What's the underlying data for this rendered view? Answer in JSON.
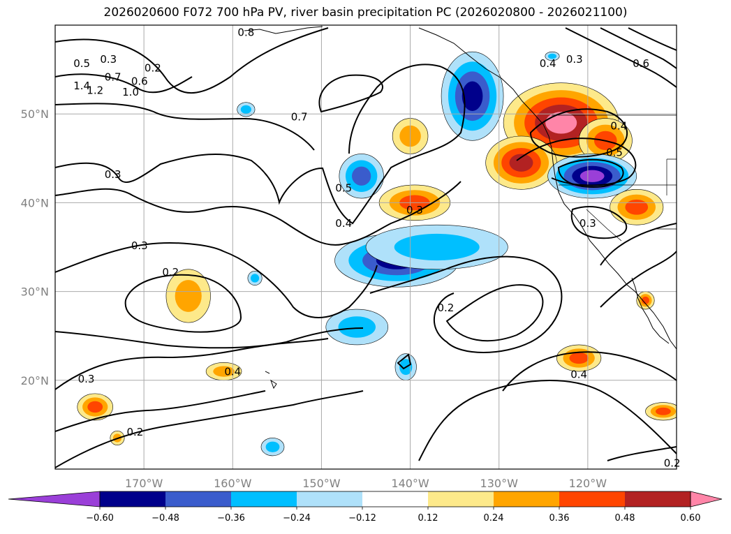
{
  "title": "2026020600 F072 700 hPa PV, river basin precipitation PC (2026020800 - 2026021100)",
  "map": {
    "lon_range": [
      -180,
      -110
    ],
    "lat_range": [
      10,
      60
    ],
    "lon_ticks": [
      {
        "value": -170,
        "label": "170°W"
      },
      {
        "value": -160,
        "label": "160°W"
      },
      {
        "value": -150,
        "label": "150°W"
      },
      {
        "value": -140,
        "label": "140°W"
      },
      {
        "value": -130,
        "label": "130°W"
      },
      {
        "value": -120,
        "label": "120°W"
      }
    ],
    "lat_ticks": [
      {
        "value": 50,
        "label": "50°N"
      },
      {
        "value": 40,
        "label": "40°N"
      },
      {
        "value": 30,
        "label": "30°N"
      },
      {
        "value": 20,
        "label": "20°N"
      }
    ],
    "gridlines": true
  },
  "colorbar": {
    "extend": "both",
    "colors": [
      "#9a3fd8",
      "#00008b",
      "#3a5ccc",
      "#00bfff",
      "#afe1fa",
      "#ffffff",
      "#fde98a",
      "#ffa500",
      "#ff4500",
      "#b22222",
      "#ff85a8"
    ],
    "tick_labels": [
      "−0.60",
      "−0.48",
      "−0.36",
      "−0.24",
      "−0.12",
      "0.12",
      "0.24",
      "0.36",
      "0.48",
      "0.60"
    ]
  },
  "contour_labels": [
    {
      "text": "0.3",
      "lon": -174,
      "lat": 56
    },
    {
      "text": "0.2",
      "lon": -169,
      "lat": 55
    },
    {
      "text": "0.5",
      "lon": -177,
      "lat": 55.5
    },
    {
      "text": "0.7",
      "lon": -173.5,
      "lat": 54
    },
    {
      "text": "0.6",
      "lon": -170.5,
      "lat": 53.5
    },
    {
      "text": "1.4",
      "lon": -177,
      "lat": 53
    },
    {
      "text": "1.2",
      "lon": -175.5,
      "lat": 52.5
    },
    {
      "text": "1.0",
      "lon": -171.5,
      "lat": 52.3
    },
    {
      "text": "0.3",
      "lon": -173.5,
      "lat": 43
    },
    {
      "text": "0.8",
      "lon": -158.5,
      "lat": 59
    },
    {
      "text": "0.7",
      "lon": -152.5,
      "lat": 49.5
    },
    {
      "text": "0.5",
      "lon": -147.5,
      "lat": 41.5
    },
    {
      "text": "0.4",
      "lon": -147.5,
      "lat": 37.5
    },
    {
      "text": "0.3",
      "lon": -139.5,
      "lat": 39
    },
    {
      "text": "0.3",
      "lon": -170.5,
      "lat": 35
    },
    {
      "text": "0.2",
      "lon": -167,
      "lat": 32
    },
    {
      "text": "0.2",
      "lon": -136,
      "lat": 28
    },
    {
      "text": "0.4",
      "lon": -160,
      "lat": 20.8
    },
    {
      "text": "0.3",
      "lon": -176.5,
      "lat": 20
    },
    {
      "text": "0.2",
      "lon": -171,
      "lat": 14
    },
    {
      "text": "0.4",
      "lon": -121,
      "lat": 20.5
    },
    {
      "text": "0.3",
      "lon": -121.5,
      "lat": 56
    },
    {
      "text": "0.4",
      "lon": -124.5,
      "lat": 55.5
    },
    {
      "text": "0.6",
      "lon": -114,
      "lat": 55.5
    },
    {
      "text": "0.4",
      "lon": -116.5,
      "lat": 48.5
    },
    {
      "text": "0.5",
      "lon": -117,
      "lat": 45.5
    },
    {
      "text": "0.3",
      "lon": -120,
      "lat": 37.5
    },
    {
      "text": "0.2",
      "lon": -110.5,
      "lat": 10.5
    }
  ],
  "precip_patches": [
    {
      "lon": -123,
      "lat": 49,
      "value": 0.7,
      "rx": 6.5,
      "ry": 4.5
    },
    {
      "lon": -127.5,
      "lat": 44.5,
      "value": 0.5,
      "rx": 4,
      "ry": 3
    },
    {
      "lon": -118,
      "lat": 47,
      "value": 0.4,
      "rx": 3,
      "ry": 2.5
    },
    {
      "lon": -119.5,
      "lat": 43,
      "value": -0.6,
      "rx": 5,
      "ry": 2.5
    },
    {
      "lon": -133,
      "lat": 52,
      "value": -0.55,
      "rx": 3.5,
      "ry": 5
    },
    {
      "lon": -145.5,
      "lat": 43,
      "value": -0.4,
      "rx": 2.5,
      "ry": 2.5
    },
    {
      "lon": -141.5,
      "lat": 33.5,
      "value": -0.5,
      "rx": 7,
      "ry": 3
    },
    {
      "lon": -137,
      "lat": 35,
      "value": -0.35,
      "rx": 8,
      "ry": 2.5
    },
    {
      "lon": -146,
      "lat": 26,
      "value": -0.25,
      "rx": 3.5,
      "ry": 2
    },
    {
      "lon": -139.5,
      "lat": 40,
      "value": 0.4,
      "rx": 4,
      "ry": 2
    },
    {
      "lon": -140,
      "lat": 47.5,
      "value": 0.3,
      "rx": 2,
      "ry": 2
    },
    {
      "lon": -165,
      "lat": 29.5,
      "value": 0.3,
      "rx": 2.5,
      "ry": 3
    },
    {
      "lon": -161,
      "lat": 21,
      "value": 0.3,
      "rx": 2,
      "ry": 1
    },
    {
      "lon": -175.5,
      "lat": 17,
      "value": 0.4,
      "rx": 2,
      "ry": 1.5
    },
    {
      "lon": -121,
      "lat": 22.5,
      "value": 0.4,
      "rx": 2.5,
      "ry": 1.5
    },
    {
      "lon": -114.5,
      "lat": 39.5,
      "value": 0.4,
      "rx": 3,
      "ry": 2
    },
    {
      "lon": -111.5,
      "lat": 16.5,
      "value": 0.4,
      "rx": 2,
      "ry": 1
    },
    {
      "lon": -155.5,
      "lat": 12.5,
      "value": -0.25,
      "rx": 1.3,
      "ry": 1
    },
    {
      "lon": -157.5,
      "lat": 31.5,
      "value": -0.25,
      "rx": 0.8,
      "ry": 0.8
    },
    {
      "lon": -158.5,
      "lat": 50.5,
      "value": -0.25,
      "rx": 1,
      "ry": 0.8
    },
    {
      "lon": -140.5,
      "lat": 21.5,
      "value": -0.25,
      "rx": 1.2,
      "ry": 1.5
    },
    {
      "lon": -124,
      "lat": 56.5,
      "value": -0.25,
      "rx": 0.8,
      "ry": 0.5
    },
    {
      "lon": -173,
      "lat": 13.5,
      "value": 0.3,
      "rx": 0.8,
      "ry": 0.8
    },
    {
      "lon": -113.5,
      "lat": 29,
      "value": 0.4,
      "rx": 1,
      "ry": 1
    }
  ]
}
